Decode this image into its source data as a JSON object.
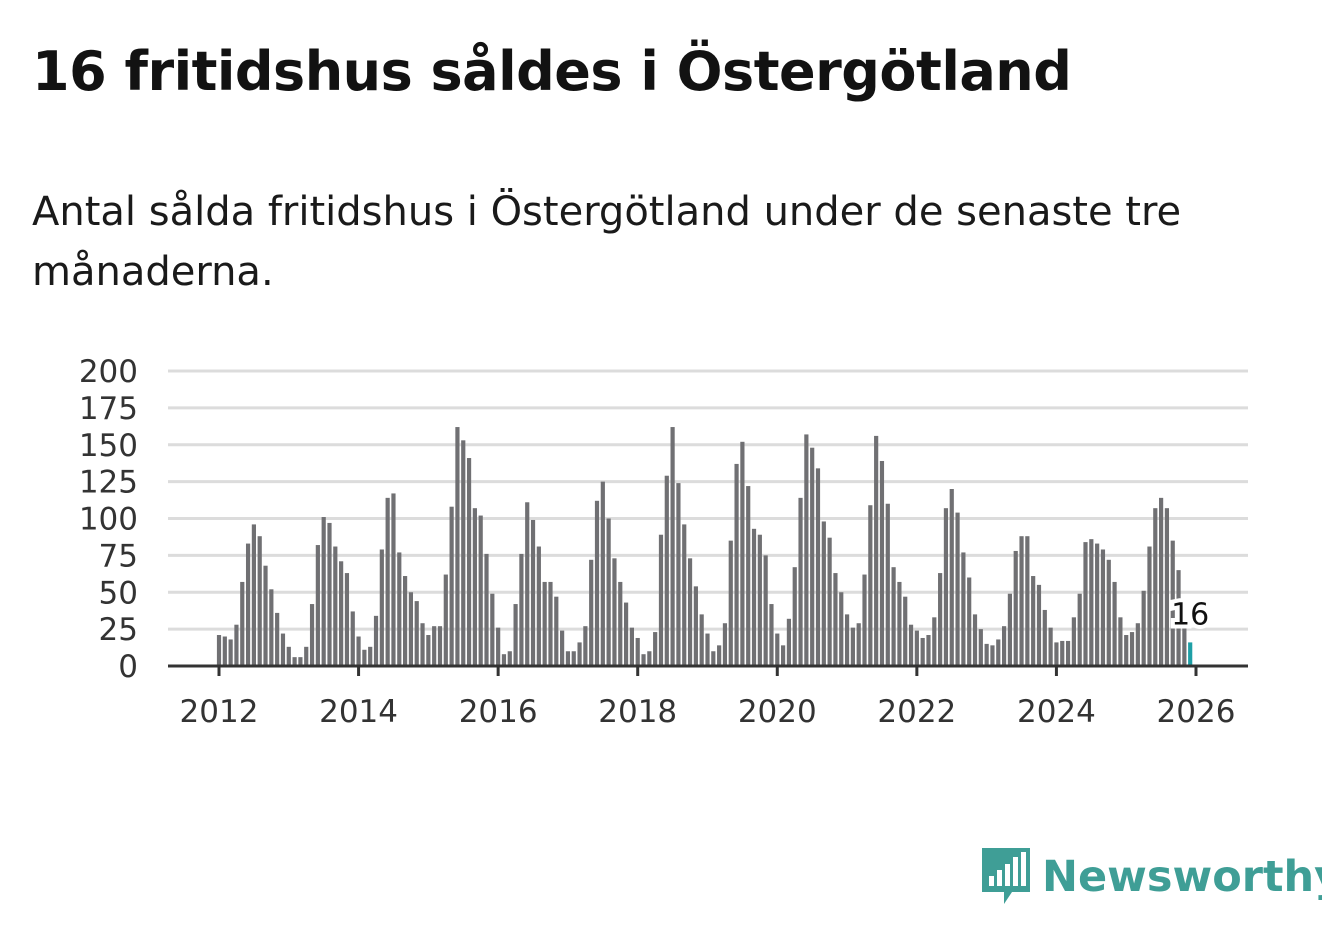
{
  "title": "16 fritidshus såldes i Östergötland",
  "subtitle": "Antal sålda fritidshus i Östergötland under de senaste tre månaderna.",
  "brand": {
    "name": "Newsworthy",
    "color": "#3f9e96",
    "icon": "newsworthy-logo-icon"
  },
  "colors": {
    "bar": "#707073",
    "highlight": "#1e9fa6",
    "grid": "#dcdcdc"
  },
  "chart_data": {
    "type": "bar",
    "title": "16 fritidshus såldes i Östergötland",
    "xlabel": "",
    "ylabel": "",
    "ylim": [
      0,
      200
    ],
    "yticks": [
      "0",
      "25",
      "50",
      "75",
      "100",
      "125",
      "150",
      "175",
      "200"
    ],
    "xticks": [
      "2012",
      "2014",
      "2016",
      "2018",
      "2020",
      "2022",
      "2024",
      "2026"
    ],
    "grid": true,
    "start": "2012-01",
    "frequency": "monthly",
    "highlight_label": "16",
    "values": [
      21,
      20,
      18,
      28,
      57,
      83,
      96,
      88,
      68,
      52,
      36,
      22,
      13,
      6,
      6,
      13,
      42,
      82,
      101,
      97,
      81,
      71,
      63,
      37,
      20,
      11,
      13,
      34,
      79,
      114,
      117,
      77,
      61,
      50,
      44,
      29,
      21,
      27,
      27,
      62,
      108,
      162,
      153,
      141,
      107,
      102,
      76,
      49,
      26,
      8,
      10,
      42,
      76,
      111,
      99,
      81,
      57,
      57,
      47,
      24,
      10,
      10,
      16,
      27,
      72,
      112,
      125,
      100,
      73,
      57,
      43,
      26,
      19,
      8,
      10,
      23,
      89,
      129,
      162,
      124,
      96,
      73,
      54,
      35,
      22,
      10,
      14,
      29,
      85,
      137,
      152,
      122,
      93,
      89,
      75,
      42,
      22,
      14,
      32,
      67,
      114,
      157,
      148,
      134,
      98,
      87,
      63,
      50,
      35,
      26,
      29,
      62,
      109,
      156,
      139,
      110,
      67,
      57,
      47,
      28,
      24,
      19,
      21,
      33,
      63,
      107,
      120,
      104,
      77,
      60,
      35,
      25,
      15,
      14,
      18,
      27,
      49,
      78,
      88,
      88,
      61,
      55,
      38,
      26,
      16,
      17,
      17,
      33,
      49,
      84,
      86,
      83,
      79,
      72,
      57,
      33,
      21,
      23,
      29,
      51,
      81,
      107,
      114,
      107,
      85,
      65,
      28,
      16
    ]
  }
}
